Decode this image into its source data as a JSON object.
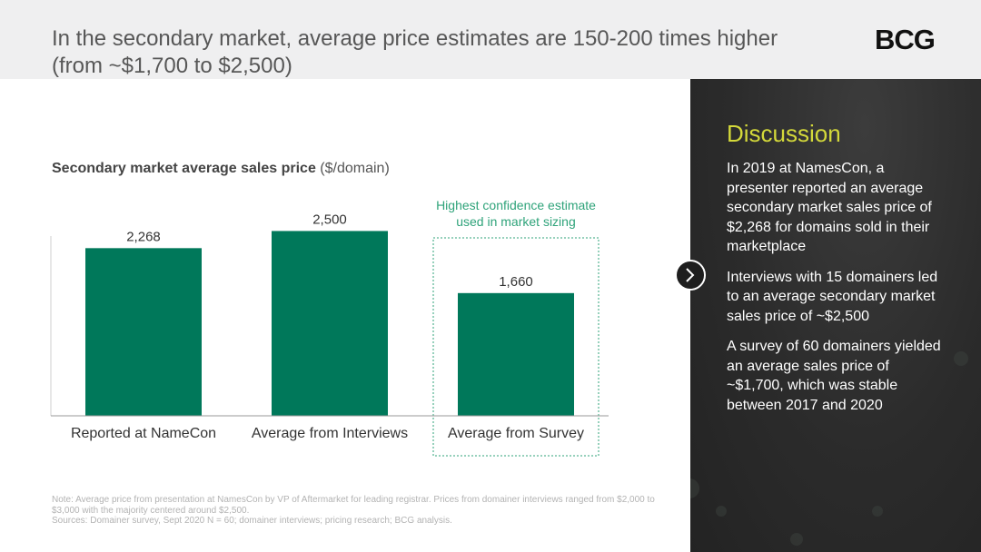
{
  "header": {
    "title": "In the secondary market, average price estimates are 150-200 times higher (from ~$1,700 to $2,500)",
    "logo": "BCG"
  },
  "chart_title": {
    "main": "Secondary market average sales price",
    "unit": "($/domain)"
  },
  "chart_data": {
    "type": "bar",
    "title": "Secondary market average sales price ($/domain)",
    "categories": [
      "Reported at NameCon",
      "Average from Interviews",
      "Average from Survey"
    ],
    "values": [
      2268,
      2500,
      1660
    ],
    "value_labels": [
      "2,268",
      "2,500",
      "1,660"
    ],
    "ylim": [
      0,
      2800
    ],
    "highlight_index": 2,
    "highlight_annotation": [
      "Highest confidence estimate",
      "used in market sizing"
    ],
    "xlabel": "",
    "ylabel": ""
  },
  "note": {
    "line1": "Note: Average price from presentation at NamesCon by VP of Aftermarket for leading registrar.  Prices from domainer interviews ranged from $2,000 to $3,000 with the majority centered around $2,500.",
    "line2": "Sources: Domainer survey, Sept 2020 N = 60; domainer interviews; pricing research; BCG analysis."
  },
  "discussion": {
    "heading": "Discussion",
    "paragraphs": [
      "In 2019 at NamesCon, a presenter reported an average secondary market sales price of $2,268 for domains sold in their marketplace",
      "Interviews with 15 domainers led to an average secondary market sales price of ~$2,500",
      "A survey of 60 domainers yielded an average sales price of ~$1,700, which was stable between 2017 and 2020"
    ]
  },
  "colors": {
    "bar": "#00785a",
    "annotation": "#2fa37a",
    "accent": "#d4d93a"
  }
}
